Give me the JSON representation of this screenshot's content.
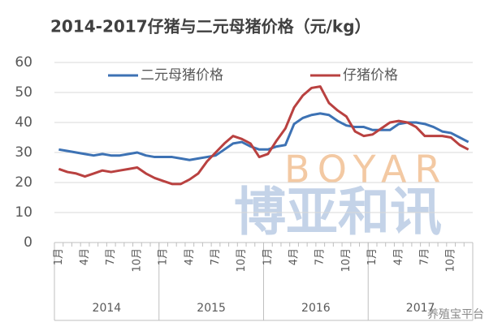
{
  "chart_data": {
    "type": "line",
    "title": "2014-2017仔猪与二元母猪价格（元/kg）",
    "categories": [
      "1月",
      null,
      null,
      "4月",
      null,
      null,
      "7月",
      null,
      null,
      "10月",
      null,
      null,
      "1月",
      null,
      null,
      "4月",
      null,
      null,
      "7月",
      null,
      null,
      "10月",
      null,
      null,
      "1月",
      null,
      null,
      "4月",
      null,
      null,
      "7月",
      null,
      null,
      "10月",
      null,
      null,
      "1月",
      null,
      null,
      "4月",
      null,
      null,
      "7月",
      null,
      null,
      "10月",
      null,
      null
    ],
    "x_groups": [
      "2014",
      "2015",
      "2016",
      "2017"
    ],
    "series": [
      {
        "name": "二元母猪价格",
        "color": "#3d72b4",
        "values": [
          31,
          30.5,
          30,
          29.5,
          29,
          29.5,
          29,
          29,
          29.5,
          30,
          29,
          28.5,
          28.5,
          28.5,
          28,
          27.5,
          28,
          28.5,
          29,
          31,
          33,
          33.5,
          32,
          31,
          31,
          32,
          32.5,
          39.5,
          41.5,
          42.5,
          43,
          42.5,
          40.5,
          39,
          38.5,
          38.5,
          37.5,
          37.5,
          37.5,
          39.5,
          40,
          40,
          39.5,
          38.5,
          37,
          36.5,
          35,
          33.5
        ]
      },
      {
        "name": "仔猪价格",
        "color": "#b94140",
        "values": [
          24.5,
          23.5,
          23,
          22,
          23,
          24,
          23.5,
          24,
          24.5,
          25,
          23,
          21.5,
          20.5,
          19.5,
          19.5,
          21,
          23,
          27,
          30,
          33,
          35.5,
          34.5,
          33,
          28.5,
          29.5,
          34,
          38,
          45,
          49,
          51.5,
          52,
          46.5,
          44,
          42,
          37,
          35.5,
          36,
          38,
          40,
          40.5,
          40,
          38.5,
          35.5,
          35.5,
          35.5,
          35,
          32.5,
          31
        ]
      }
    ],
    "ylim": [
      0,
      60
    ],
    "yticks": [
      0,
      10,
      20,
      30,
      40,
      50,
      60
    ],
    "grid": true,
    "legend": "top",
    "watermarks": {
      "brand_en": "BOYAR",
      "brand_cn": "博亚和讯",
      "source": "养殖宝平台"
    }
  }
}
